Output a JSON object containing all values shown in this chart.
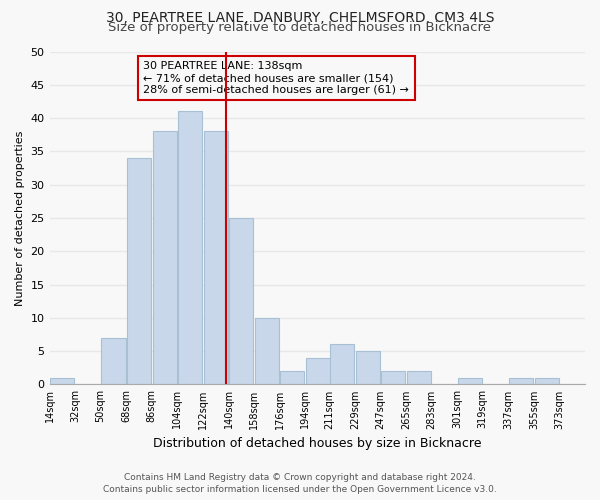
{
  "title_line1": "30, PEARTREE LANE, DANBURY, CHELMSFORD, CM3 4LS",
  "title_line2": "Size of property relative to detached houses in Bicknacre",
  "xlabel": "Distribution of detached houses by size in Bicknacre",
  "ylabel": "Number of detached properties",
  "bin_labels": [
    "14sqm",
    "32sqm",
    "50sqm",
    "68sqm",
    "86sqm",
    "104sqm",
    "122sqm",
    "140sqm",
    "158sqm",
    "176sqm",
    "194sqm",
    "211sqm",
    "229sqm",
    "247sqm",
    "265sqm",
    "283sqm",
    "301sqm",
    "319sqm",
    "337sqm",
    "355sqm",
    "373sqm"
  ],
  "bin_edges": [
    14,
    32,
    50,
    68,
    86,
    104,
    122,
    140,
    158,
    176,
    194,
    211,
    229,
    247,
    265,
    283,
    301,
    319,
    337,
    355,
    373,
    391
  ],
  "bar_heights": [
    1,
    0,
    7,
    34,
    38,
    41,
    38,
    25,
    10,
    2,
    4,
    6,
    5,
    2,
    2,
    0,
    1,
    0,
    1,
    1,
    0
  ],
  "bar_color": "#c8d8ea",
  "bar_edge_color": "#a8c0d4",
  "property_line_x": 138,
  "property_line_color": "#cc0000",
  "ann_line1": "30 PEARTREE LANE: 138sqm",
  "ann_line2": "← 71% of detached houses are smaller (154)",
  "ann_line3": "28% of semi-detached houses are larger (61) →",
  "ylim": [
    0,
    50
  ],
  "yticks": [
    0,
    5,
    10,
    15,
    20,
    25,
    30,
    35,
    40,
    45,
    50
  ],
  "footer_line1": "Contains HM Land Registry data © Crown copyright and database right 2024.",
  "footer_line2": "Contains public sector information licensed under the Open Government Licence v3.0.",
  "background_color": "#f8f8f8",
  "grid_color": "#e8e8e8",
  "title1_fontsize": 10,
  "title2_fontsize": 9.5,
  "xlabel_fontsize": 9,
  "ylabel_fontsize": 8,
  "tick_fontsize": 7,
  "ytick_fontsize": 8,
  "annotation_fontsize": 8,
  "footer_fontsize": 6.5
}
